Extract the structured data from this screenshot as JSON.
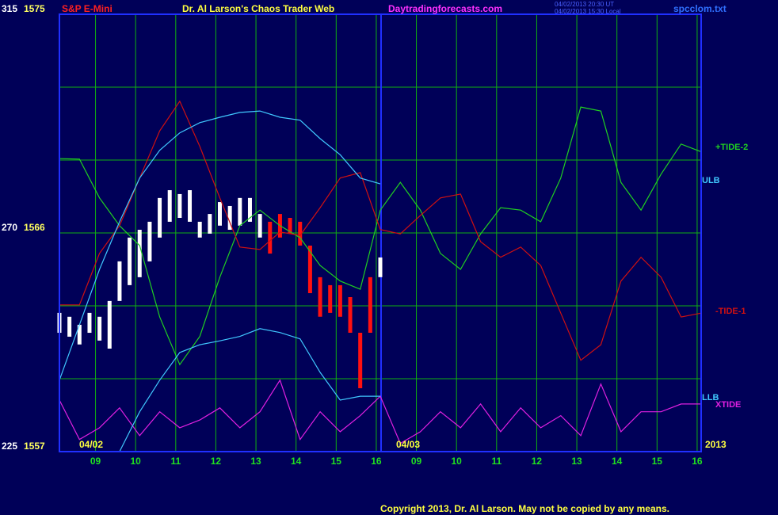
{
  "chart_data": {
    "type": "line",
    "title": "S&P E-Mini",
    "subtitle": "Dr. Al Larson's Chaos Trader Web",
    "site": "Daytradingforecasts.com",
    "timestamps": [
      "04/02/2013 20:30 UT",
      "04/02/2013 15:30 Local"
    ],
    "file": "spcclom.txt",
    "copyright": "Copyright 2013, Dr. Al Larson. May not be copied by any means.",
    "date_labels": [
      "04/02",
      "04/03",
      "2013"
    ],
    "xlim": [
      -0.9,
      15.1
    ],
    "xticks": [
      {
        "value": 0,
        "label": "09"
      },
      {
        "value": 1,
        "label": "10"
      },
      {
        "value": 2,
        "label": "11"
      },
      {
        "value": 3,
        "label": "12"
      },
      {
        "value": 4,
        "label": "13"
      },
      {
        "value": 5,
        "label": "14"
      },
      {
        "value": 6,
        "label": "15"
      },
      {
        "value": 7,
        "label": "16"
      },
      {
        "value": 8,
        "label": "09"
      },
      {
        "value": 9,
        "label": "10"
      },
      {
        "value": 10,
        "label": "11"
      },
      {
        "value": 11,
        "label": "12"
      },
      {
        "value": 12,
        "label": "13"
      },
      {
        "value": 13,
        "label": "14"
      },
      {
        "value": 14,
        "label": "15"
      },
      {
        "value": 15,
        "label": "16"
      }
    ],
    "ylim": [
      225,
      315
    ],
    "yticks": [
      225,
      270,
      315
    ],
    "minor_yticks": [
      240,
      255,
      285,
      300
    ],
    "y2lim": [
      1557,
      1575
    ],
    "y2ticks": [
      1557,
      1566,
      1575
    ],
    "grid": true,
    "series": [
      {
        "name": "+TIDE-2",
        "color": "#20d020",
        "x": [
          -0.9,
          -0.4,
          0.1,
          0.6,
          1.1,
          1.6,
          2.1,
          2.6,
          3.1,
          3.6,
          4.1,
          4.6,
          5.1,
          5.6,
          6.1,
          6.6,
          7.1,
          7.6,
          8.1,
          8.6,
          9.1,
          9.6,
          10.1,
          10.6,
          11.1,
          11.6,
          12.1,
          12.6,
          13.1,
          13.6,
          14.1,
          14.6,
          15.1
        ],
        "values": [
          285.3,
          285.2,
          277.2,
          271.5,
          267.4,
          252.7,
          242.9,
          248.7,
          260.9,
          271.5,
          274.7,
          271.5,
          269.0,
          263.3,
          260.1,
          258.4,
          274.7,
          280.4,
          274.7,
          265.8,
          262.5,
          269.8,
          275.2,
          274.7,
          272.3,
          281.3,
          295.9,
          295.1,
          280.4,
          274.7,
          282.1,
          288.3,
          286.7
        ]
      },
      {
        "name": "-TIDE-1",
        "color": "#d01010",
        "x": [
          -0.9,
          -0.4,
          0.1,
          0.6,
          1.1,
          1.6,
          2.1,
          2.6,
          3.1,
          3.6,
          4.1,
          4.6,
          5.1,
          5.6,
          6.1,
          6.6,
          7.1,
          7.6,
          8.1,
          8.6,
          9.1,
          9.6,
          10.1,
          10.6,
          11.1,
          11.6,
          12.1,
          12.6,
          13.1,
          13.6,
          14.1,
          14.6,
          15.1
        ],
        "values": [
          255.2,
          255.2,
          265.8,
          271.5,
          281.3,
          291.0,
          297.1,
          287.8,
          277.2,
          267.1,
          266.6,
          270.2,
          269.5,
          275.2,
          281.3,
          282.4,
          270.7,
          269.8,
          273.6,
          277.2,
          278.0,
          268.2,
          265.0,
          267.1,
          263.3,
          253.5,
          243.8,
          247.0,
          260.1,
          265.0,
          260.9,
          252.7,
          253.5
        ]
      },
      {
        "name": "XTIDE",
        "color": "#e020e0",
        "x": [
          -0.9,
          -0.4,
          0.1,
          0.6,
          1.1,
          1.6,
          2.1,
          2.6,
          3.1,
          3.6,
          4.1,
          4.6,
          5.1,
          5.6,
          6.1,
          6.6,
          7.1,
          7.6,
          8.1,
          8.6,
          9.1,
          9.6,
          10.1,
          10.6,
          11.1,
          11.6,
          12.1,
          12.6,
          13.1,
          13.6,
          14.1,
          14.6,
          15.1
        ],
        "values": [
          235.6,
          227.5,
          229.9,
          234.0,
          228.3,
          233.2,
          229.9,
          231.5,
          234.0,
          229.9,
          233.2,
          239.7,
          227.5,
          233.2,
          229.1,
          232.4,
          236.4,
          226.7,
          229.1,
          233.2,
          229.9,
          234.8,
          229.1,
          234.0,
          229.9,
          232.4,
          228.3,
          238.9,
          229.1,
          233.2,
          233.2,
          234.8,
          234.8
        ]
      },
      {
        "name": "ULB",
        "color": "#40c8ff",
        "x": [
          -0.9,
          -0.4,
          0.1,
          0.6,
          1.1,
          1.6,
          2.1,
          2.6,
          3.1,
          3.6,
          4.1,
          4.6,
          5.1,
          5.6,
          6.1,
          6.6,
          7.1
        ],
        "values": [
          239.7,
          251.1,
          262.5,
          272.3,
          281.3,
          287.0,
          290.6,
          292.7,
          293.8,
          294.8,
          295.1,
          293.8,
          293.2,
          289.4,
          286.1,
          281.3,
          280.1
        ]
      },
      {
        "name": "LLB",
        "color": "#40c8ff",
        "x": [
          0.6,
          1.1,
          1.6,
          2.1,
          2.6,
          3.1,
          3.6,
          4.1,
          4.6,
          5.1,
          5.6,
          6.1,
          6.6,
          7.1
        ],
        "values": [
          225.0,
          233.2,
          239.7,
          245.4,
          247.0,
          247.8,
          248.7,
          250.3,
          249.5,
          248.2,
          241.3,
          235.6,
          236.4,
          236.4
        ]
      }
    ],
    "price": {
      "x": [
        -0.9,
        -0.65,
        -0.4,
        -0.15,
        0.1,
        0.35,
        0.6,
        0.85,
        1.1,
        1.35,
        1.6,
        1.85,
        2.1,
        2.35,
        2.6,
        2.85,
        3.1,
        3.35,
        3.6,
        3.85,
        4.1,
        4.35,
        4.6,
        4.85,
        5.1,
        5.35,
        5.6,
        5.85,
        6.1,
        6.35,
        6.6,
        6.85,
        7.1
      ],
      "high": [
        1562.71,
        1562.55,
        1562.22,
        1562.71,
        1562.55,
        1563.2,
        1564.83,
        1565.81,
        1566.13,
        1566.46,
        1567.44,
        1567.76,
        1567.6,
        1567.76,
        1566.46,
        1566.78,
        1567.27,
        1567.11,
        1567.44,
        1567.44,
        1566.78,
        1566.46,
        1566.78,
        1566.62,
        1566.46,
        1565.48,
        1564.18,
        1563.85,
        1563.85,
        1563.36,
        1561.89,
        1564.18,
        1564.99
      ],
      "low": [
        1561.89,
        1561.73,
        1561.41,
        1561.89,
        1561.57,
        1561.24,
        1563.2,
        1563.85,
        1564.18,
        1564.83,
        1565.81,
        1566.46,
        1566.62,
        1566.46,
        1565.81,
        1565.97,
        1566.3,
        1566.13,
        1566.3,
        1566.46,
        1565.81,
        1565.15,
        1565.81,
        1565.97,
        1565.48,
        1563.52,
        1562.55,
        1562.71,
        1562.55,
        1561.89,
        1559.61,
        1561.89,
        1564.18
      ],
      "colors": [
        "#ffffff",
        "#ffffff",
        "#ffffff",
        "#ffffff",
        "#ffffff",
        "#ffffff",
        "#ffffff",
        "#ffffff",
        "#ffffff",
        "#ffffff",
        "#ffffff",
        "#ffffff",
        "#ffffff",
        "#ffffff",
        "#ffffff",
        "#ffffff",
        "#ffffff",
        "#ffffff",
        "#ffffff",
        "#ffffff",
        "#ffffff",
        "#ff1010",
        "#ff1010",
        "#ff1010",
        "#ff1010",
        "#ff1010",
        "#ff1010",
        "#ff1010",
        "#ff1010",
        "#ff1010",
        "#ff1010",
        "#ff1010",
        "#ffffff"
      ]
    }
  }
}
